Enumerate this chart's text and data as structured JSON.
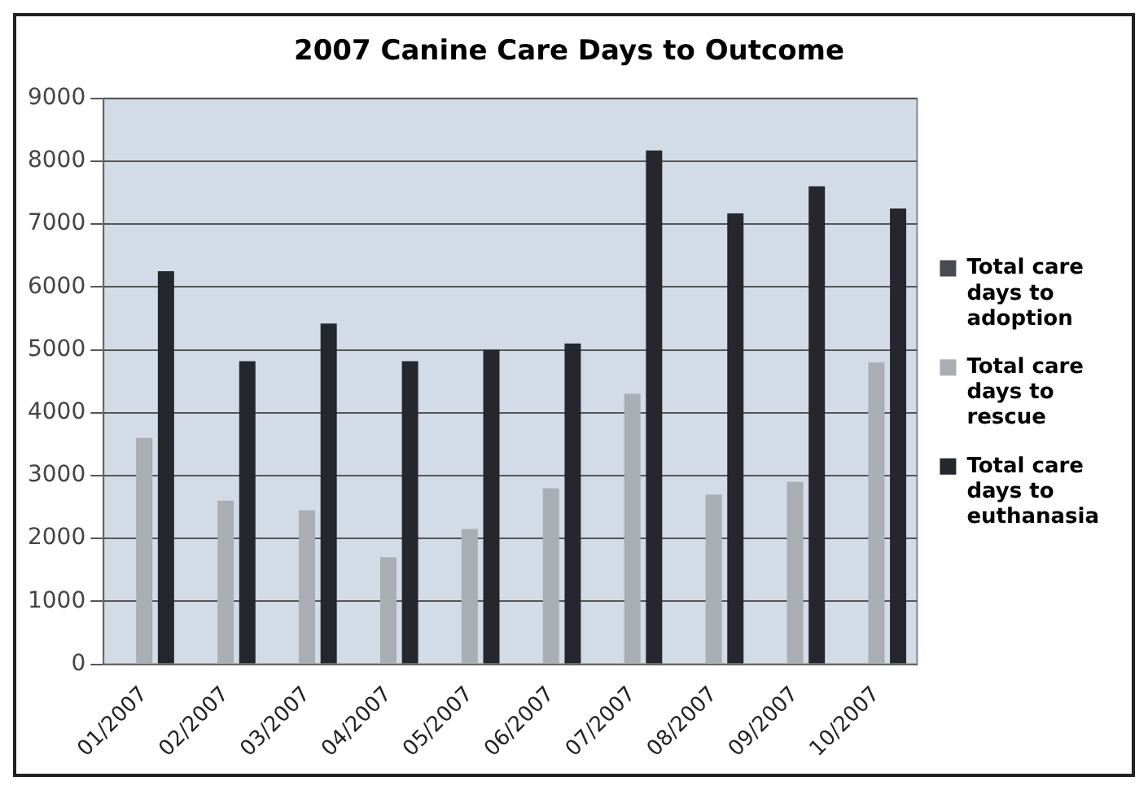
{
  "chart_data": {
    "type": "bar",
    "title": "2007 Canine Care Days to Outcome",
    "categories": [
      "01/2007",
      "02/2007",
      "03/2007",
      "04/2007",
      "05/2007",
      "06/2007",
      "07/2007",
      "08/2007",
      "09/2007",
      "10/2007"
    ],
    "series": [
      {
        "name": "Total care days to adoption",
        "color": "#4a4a52",
        "values": [
          null,
          null,
          null,
          null,
          null,
          null,
          null,
          null,
          null,
          null
        ]
      },
      {
        "name": "Total care days to rescue",
        "color": "#a9adb4",
        "values": [
          3600,
          2600,
          2450,
          1700,
          2150,
          2800,
          4300,
          2700,
          2900,
          4800
        ]
      },
      {
        "name": "Total care days to euthanasia",
        "color": "#25272f",
        "values": [
          6250,
          4820,
          5420,
          4820,
          5000,
          5100,
          8170,
          7170,
          7600,
          7250
        ]
      }
    ],
    "ylim": [
      0,
      9000
    ],
    "yticks": [
      0,
      1000,
      2000,
      3000,
      4000,
      5000,
      6000,
      7000,
      8000,
      9000
    ],
    "grid": "y",
    "legend": "right"
  }
}
